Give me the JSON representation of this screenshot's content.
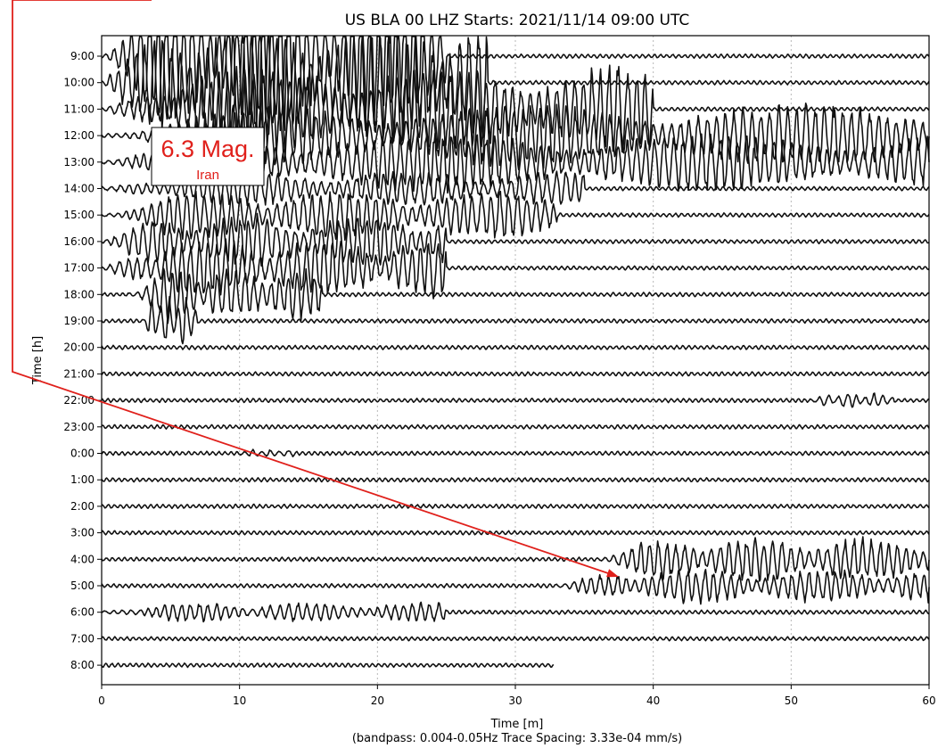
{
  "chart_data": {
    "type": "line",
    "title": "US BLA 00 LHZ  Starts: 2021/11/14 09:00 UTC",
    "xlabel": "Time [m]",
    "subtitle": "(bandpass: 0.004-0.05Hz  Trace Spacing: 3.33e-04 mm/s)",
    "ylabel": "Time [h]",
    "xlim": [
      0,
      60
    ],
    "xticks": [
      "0",
      "10",
      "20",
      "30",
      "40",
      "50",
      "60"
    ],
    "grid": "vertical dotted",
    "traces": [
      {
        "label": "9:00",
        "events": [
          {
            "start": 0,
            "end": 25,
            "amplitude": 3.0
          }
        ]
      },
      {
        "label": "10:00",
        "events": [
          {
            "start": 0,
            "end": 28,
            "amplitude": 2.6
          }
        ]
      },
      {
        "label": "11:00",
        "events": [
          {
            "start": 0,
            "end": 40,
            "amplitude": 1.8
          }
        ]
      },
      {
        "label": "12:00",
        "events": [
          {
            "start": 0,
            "end": 60,
            "amplitude": 1.3
          }
        ]
      },
      {
        "label": "13:00",
        "events": [
          {
            "start": 0,
            "end": 60,
            "amplitude": 1.2
          }
        ]
      },
      {
        "label": "14:00",
        "events": [
          {
            "start": 0,
            "end": 35,
            "amplitude": 0.7
          }
        ]
      },
      {
        "label": "15:00",
        "events": [
          {
            "start": 0,
            "end": 33,
            "amplitude": 1.0
          }
        ]
      },
      {
        "label": "16:00",
        "events": [
          {
            "start": 0,
            "end": 25,
            "amplitude": 1.1
          }
        ]
      },
      {
        "label": "17:00",
        "events": [
          {
            "start": 0,
            "end": 25,
            "amplitude": 1.2
          }
        ]
      },
      {
        "label": "18:00",
        "events": [
          {
            "start": 2,
            "end": 16,
            "amplitude": 1.1
          }
        ]
      },
      {
        "label": "19:00",
        "events": [
          {
            "start": 3,
            "end": 7,
            "amplitude": 1.0
          }
        ]
      },
      {
        "label": "20:00",
        "events": []
      },
      {
        "label": "21:00",
        "events": []
      },
      {
        "label": "22:00",
        "events": [
          {
            "start": 51.5,
            "end": 57.5,
            "amplitude": 0.3
          }
        ]
      },
      {
        "label": "23:00",
        "events": []
      },
      {
        "label": "0:00",
        "events": [
          {
            "start": 10,
            "end": 14,
            "amplitude": 0.15
          }
        ]
      },
      {
        "label": "1:00",
        "events": []
      },
      {
        "label": "2:00",
        "events": []
      },
      {
        "label": "3:00",
        "events": []
      },
      {
        "label": "4:00",
        "events": [
          {
            "start": 36,
            "end": 60,
            "amplitude": 0.9
          }
        ]
      },
      {
        "label": "5:00",
        "events": [
          {
            "start": 33,
            "end": 60,
            "amplitude": 0.7
          }
        ]
      },
      {
        "label": "6:00",
        "events": [
          {
            "start": 0,
            "end": 25,
            "amplitude": 0.4
          }
        ]
      },
      {
        "label": "7:00",
        "events": []
      },
      {
        "label": "8:00",
        "events": [],
        "end": 32.8
      }
    ],
    "annotation": {
      "magnitude": "6.3 Mag.",
      "location": "Iran",
      "arrow_target": {
        "x": 37.5,
        "trace": "5:00"
      }
    }
  }
}
